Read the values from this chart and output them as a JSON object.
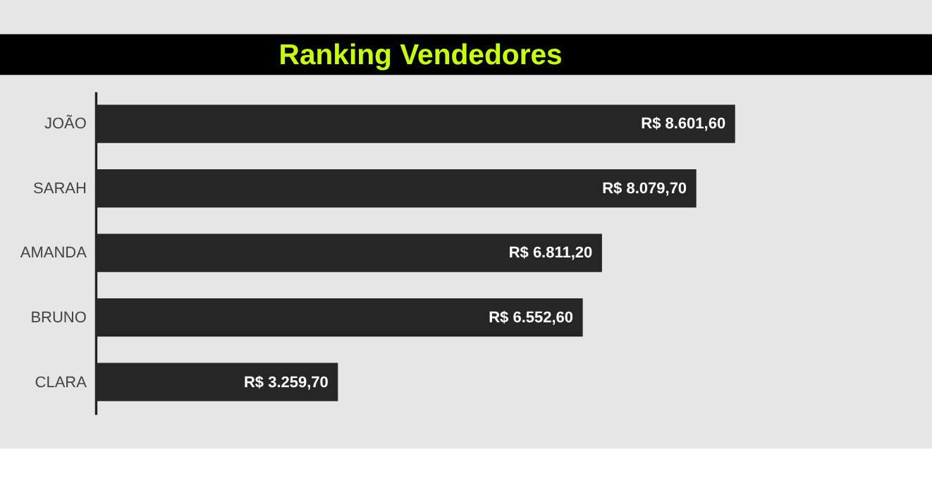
{
  "chart_data": {
    "type": "bar",
    "orientation": "horizontal",
    "title": "Ranking Vendedores",
    "categories": [
      "JOÃO",
      "SARAH",
      "AMANDA",
      "BRUNO",
      "CLARA"
    ],
    "values": [
      8601.6,
      8079.7,
      6811.2,
      6552.6,
      3259.7
    ],
    "value_labels": [
      "R$ 8.601,60",
      "R$ 8.079,70",
      "R$ 6.811,20",
      "R$ 6.552,60",
      "R$ 3.259,70"
    ],
    "color": "#262626",
    "tick_labels": "y"
  }
}
